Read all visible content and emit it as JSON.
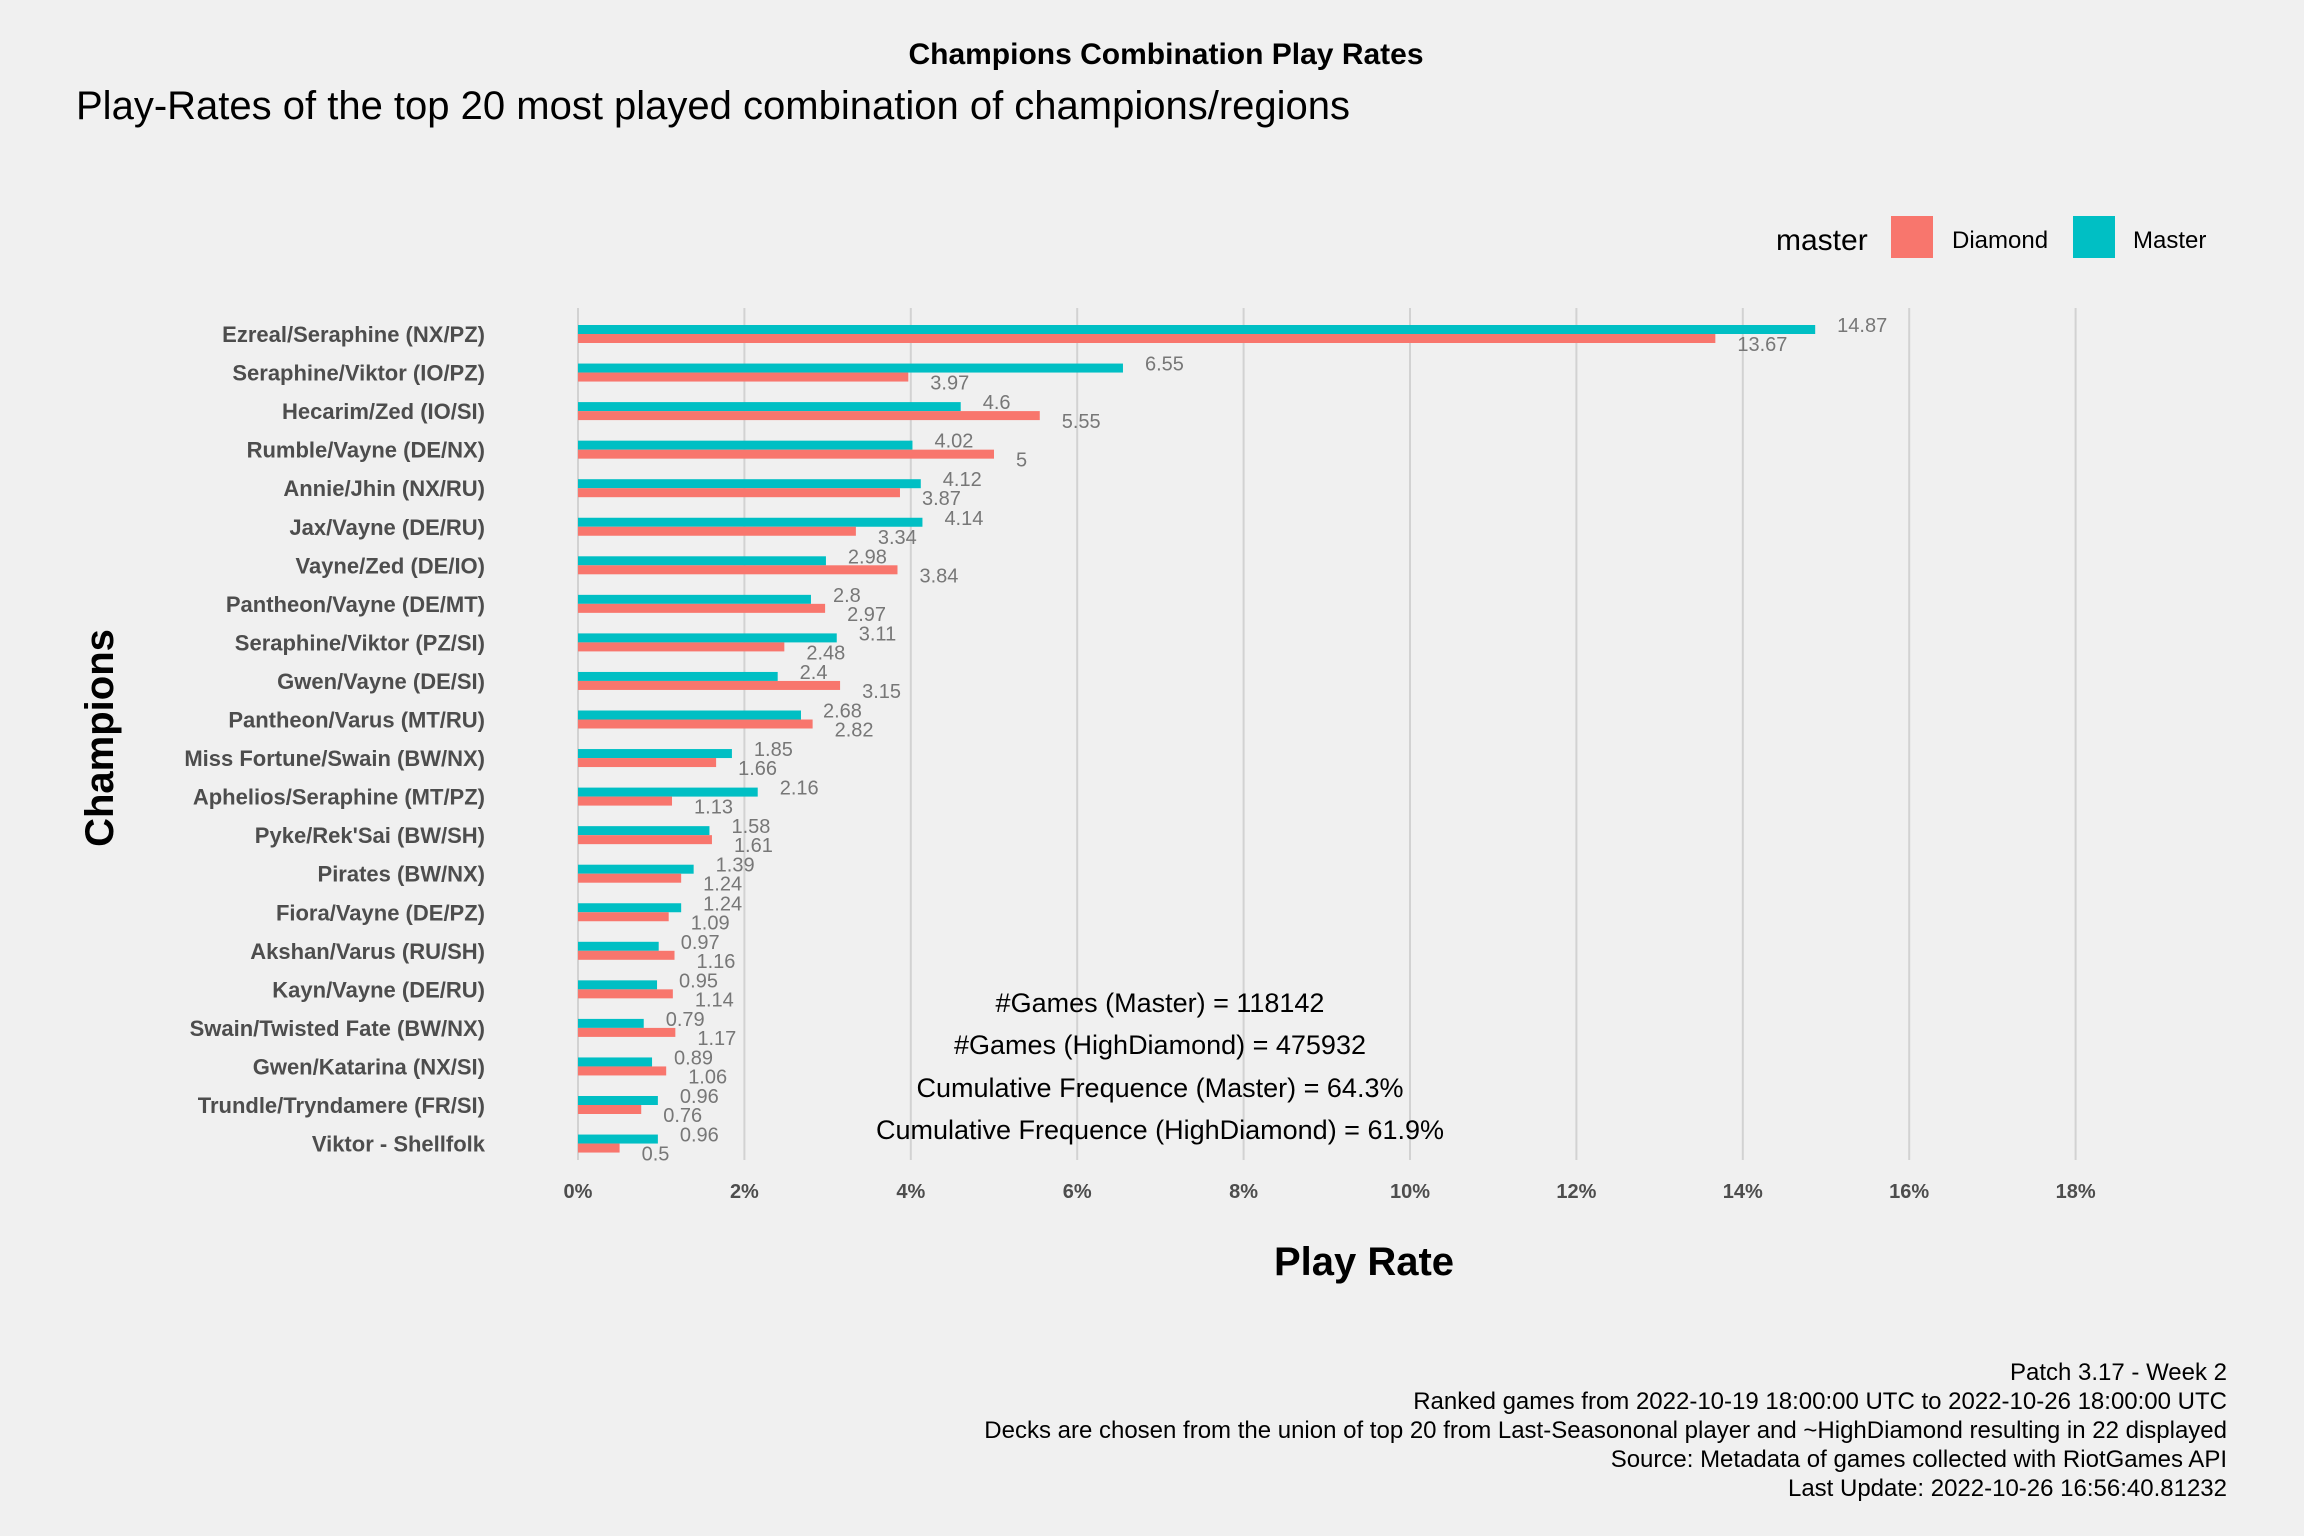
{
  "chart_data": {
    "type": "bar",
    "orientation": "horizontal",
    "title": "Champions Combination Play Rates",
    "subtitle": "Play-Rates of the top 20 most played combination of champions/regions",
    "xlabel": "Play Rate",
    "ylabel": "Champions",
    "xlim": [
      0,
      18
    ],
    "x_ticks": [
      "0%",
      "2%",
      "4%",
      "6%",
      "8%",
      "10%",
      "12%",
      "14%",
      "16%",
      "18%"
    ],
    "grid": "vertical major",
    "legend": {
      "title": "master",
      "position": "top-right",
      "entries": [
        {
          "name": "Diamond",
          "color": "#F8766D"
        },
        {
          "name": "Master",
          "color": "#00BFC4"
        }
      ]
    },
    "categories": [
      "Ezreal/Seraphine (NX/PZ)",
      "Seraphine/Viktor (IO/PZ)",
      "Hecarim/Zed (IO/SI)",
      "Rumble/Vayne (DE/NX)",
      "Annie/Jhin (NX/RU)",
      "Jax/Vayne (DE/RU)",
      "Vayne/Zed (DE/IO)",
      "Pantheon/Vayne (DE/MT)",
      "Seraphine/Viktor (PZ/SI)",
      "Gwen/Vayne (DE/SI)",
      "Pantheon/Varus (MT/RU)",
      "Miss Fortune/Swain (BW/NX)",
      "Aphelios/Seraphine (MT/PZ)",
      "Pyke/Rek'Sai (BW/SH)",
      "Pirates (BW/NX)",
      "Fiora/Vayne (DE/PZ)",
      "Akshan/Varus (RU/SH)",
      "Kayn/Vayne (DE/RU)",
      "Swain/Twisted Fate (BW/NX)",
      "Gwen/Katarina (NX/SI)",
      "Trundle/Tryndamere (FR/SI)",
      "Viktor - Shellfolk"
    ],
    "series": [
      {
        "name": "Master",
        "color": "#00BFC4",
        "values": [
          14.87,
          6.55,
          4.6,
          4.02,
          4.12,
          4.14,
          2.98,
          2.8,
          3.11,
          2.4,
          2.68,
          1.85,
          2.16,
          1.58,
          1.39,
          1.24,
          0.97,
          0.95,
          0.79,
          0.89,
          0.96,
          0.96
        ],
        "labels": [
          "14.87",
          "6.55",
          "4.6",
          "4.02",
          "4.12",
          "4.14",
          "2.98",
          "2.8",
          "3.11",
          "2.4",
          "2.68",
          "1.85",
          "2.16",
          "1.58",
          "1.39",
          "1.24",
          "0.97",
          "0.95",
          "0.79",
          "0.89",
          "0.96",
          "0.96"
        ]
      },
      {
        "name": "Diamond",
        "color": "#F8766D",
        "values": [
          13.67,
          3.97,
          5.55,
          5,
          3.87,
          3.34,
          3.84,
          2.97,
          2.48,
          3.15,
          2.82,
          1.66,
          1.13,
          1.61,
          1.24,
          1.09,
          1.16,
          1.14,
          1.17,
          1.06,
          0.76,
          0.5
        ],
        "labels": [
          "13.67",
          "3.97",
          "5.55",
          "5",
          "3.87",
          "3.34",
          "3.84",
          "2.97",
          "2.48",
          "3.15",
          "2.82",
          "1.66",
          "1.13",
          "1.61",
          "1.24",
          "1.09",
          "1.16",
          "1.14",
          "1.17",
          "1.06",
          "0.76",
          "0.5"
        ]
      }
    ],
    "annotations": [
      "#Games (Master) = 118142",
      "#Games (HighDiamond) = 475932",
      "Cumulative Frequence (Master) = 64.3%",
      "Cumulative Frequence (HighDiamond) = 61.9%"
    ],
    "caption": [
      "Patch 3.17 - Week 2",
      "Ranked games from 2022-10-19 18:00:00 UTC to 2022-10-26 18:00:00 UTC",
      "Decks are chosen from the union of top 20 from Last-Seasononal player and ~HighDiamond resulting in 22 displayed",
      "Source: Metadata of games collected with RiotGames API",
      "Last Update: 2022-10-26 16:56:40.81232"
    ]
  }
}
